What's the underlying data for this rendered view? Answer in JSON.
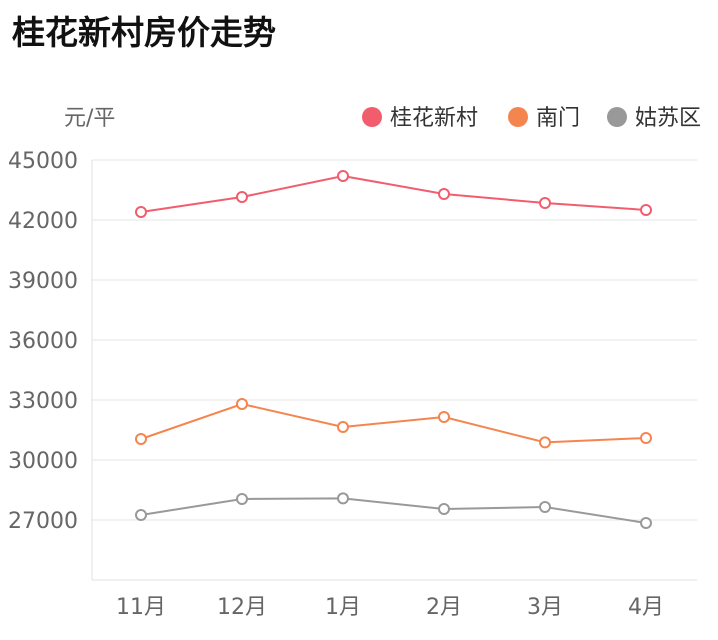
{
  "page": {
    "title": "桂花新村房价走势"
  },
  "chart_data": {
    "type": "line",
    "title": "桂花新村房价走势",
    "ylabel": "元/平",
    "xlabel": "",
    "categories": [
      "11月",
      "12月",
      "1月",
      "2月",
      "3月",
      "4月"
    ],
    "ylim": [
      24000,
      45000
    ],
    "yticks": [
      "27000",
      "30000",
      "33000",
      "36000",
      "39000",
      "42000",
      "45000"
    ],
    "legend_position": "top-right",
    "grid": true,
    "series": [
      {
        "name": "桂花新村",
        "color": "#f25d6e",
        "values": [
          42400,
          43150,
          44200,
          43300,
          42850,
          42500
        ]
      },
      {
        "name": "南门",
        "color": "#f5854e",
        "values": [
          31050,
          32800,
          31650,
          32150,
          30880,
          31100
        ]
      },
      {
        "name": "姑苏区",
        "color": "#999999",
        "values": [
          27250,
          28050,
          28080,
          27550,
          27650,
          26850
        ]
      }
    ]
  }
}
